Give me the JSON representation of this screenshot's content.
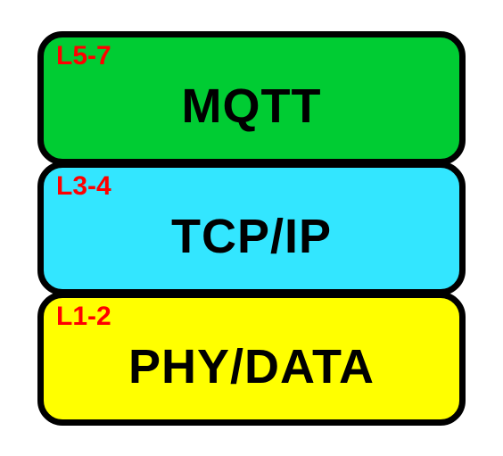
{
  "diagram": {
    "type": "infographic",
    "background_color": "#ffffff",
    "border_color": "#000000",
    "border_width": 7,
    "border_radius": 28,
    "layer_width": 480,
    "layer_height": 150,
    "label_color": "#ff0000",
    "label_fontsize": 30,
    "title_color": "#000000",
    "title_fontsize": 54,
    "layers": [
      {
        "label": "L5-7",
        "title": "MQTT",
        "background_color": "#00cc33"
      },
      {
        "label": "L3-4",
        "title": "TCP/IP",
        "background_color": "#33e6ff"
      },
      {
        "label": "L1-2",
        "title": "PHY/DATA",
        "background_color": "#ffff00"
      }
    ]
  }
}
